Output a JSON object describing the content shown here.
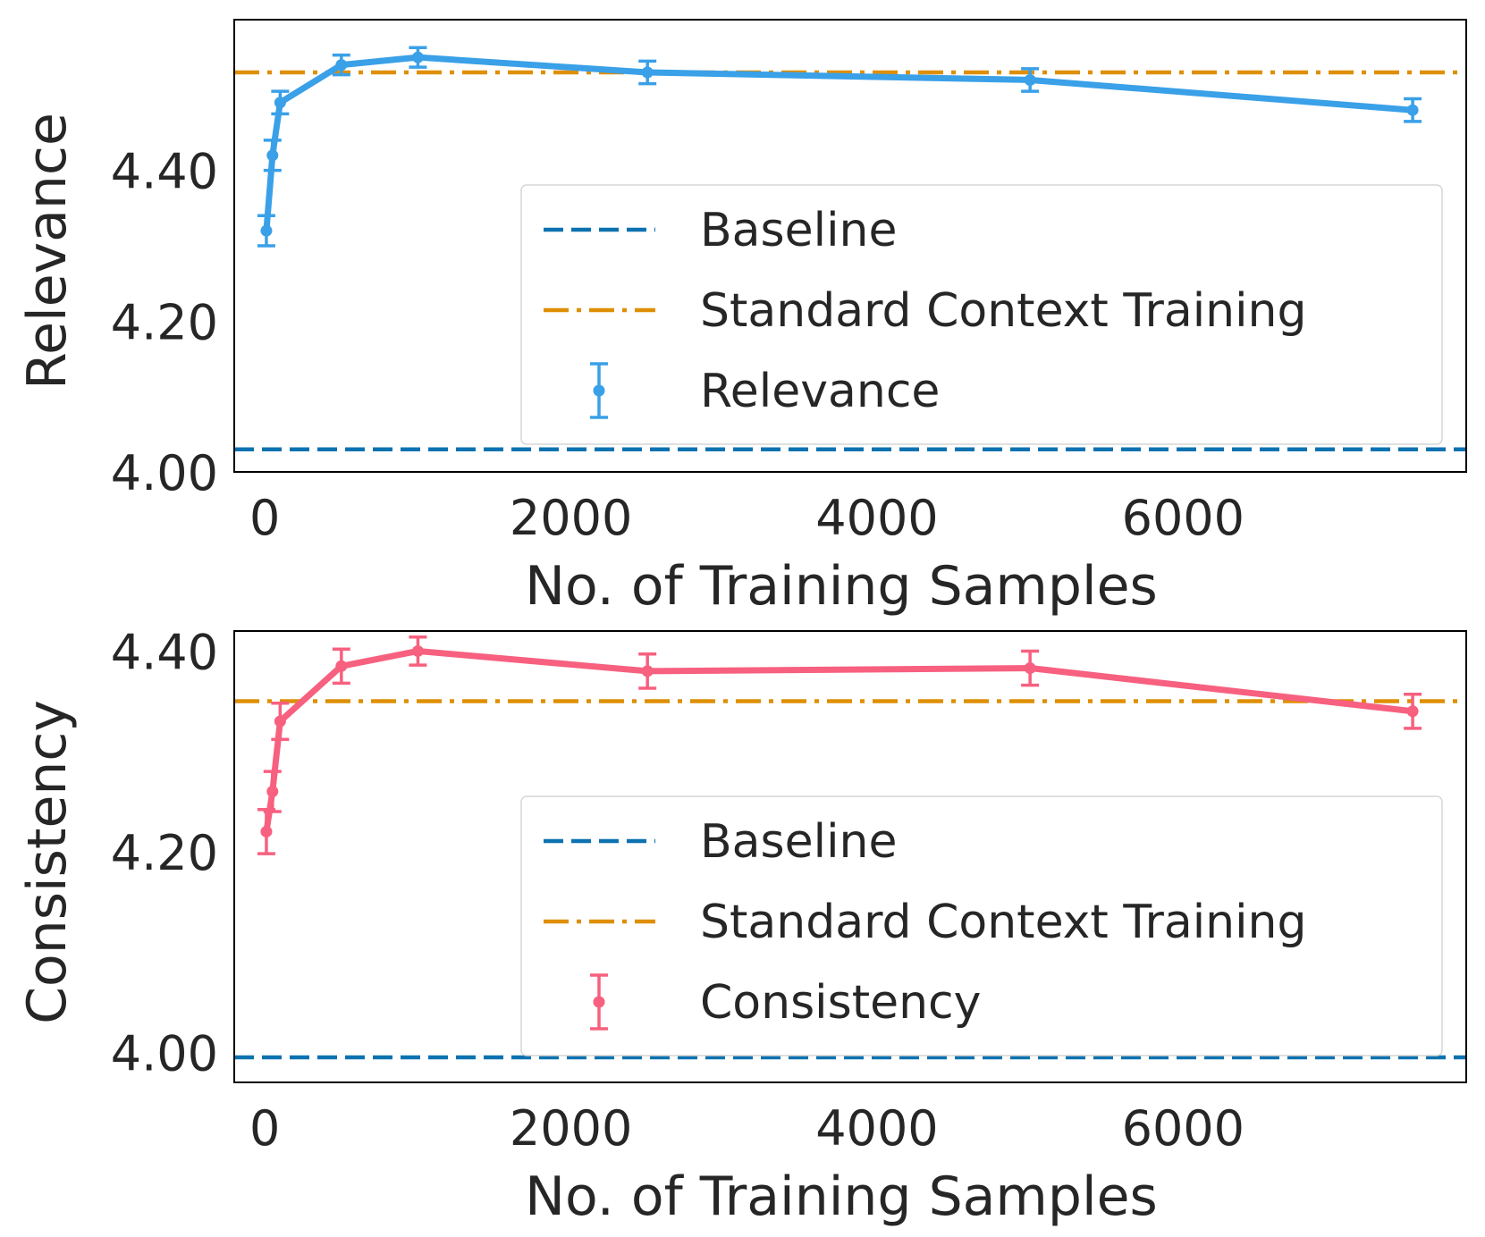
{
  "chart_data": [
    {
      "type": "line",
      "xlabel": "No. of Training Samples",
      "ylabel": "Relevance",
      "xlim": [
        -200,
        7850
      ],
      "ylim": [
        4.0,
        4.6
      ],
      "xticks": [
        0,
        2000,
        4000,
        6000
      ],
      "xtick_labels": [
        "0",
        "2000",
        "4000",
        "6000"
      ],
      "yticks": [
        4.0,
        4.2,
        4.4
      ],
      "ytick_labels": [
        "4.00",
        "4.20",
        "4.40"
      ],
      "grid": false,
      "legend_position": "lower-right",
      "series": {
        "name": "Relevance",
        "color": "#3aa0e8",
        "x": [
          10,
          50,
          100,
          500,
          1000,
          2500,
          5000,
          7500
        ],
        "y": [
          4.32,
          4.42,
          4.49,
          4.54,
          4.55,
          4.53,
          4.52,
          4.48
        ],
        "err": [
          0.02,
          0.02,
          0.015,
          0.013,
          0.013,
          0.015,
          0.015,
          0.015
        ]
      },
      "reference_lines": [
        {
          "name": "Baseline",
          "y": 4.03,
          "color": "#0d72b0",
          "style": "dashed"
        },
        {
          "name": "Standard Context Training",
          "y": 4.53,
          "color": "#de8f05",
          "style": "dashdot"
        }
      ],
      "legend": [
        "Baseline",
        "Standard Context Training",
        "Relevance"
      ]
    },
    {
      "type": "line",
      "xlabel": "No. of Training Samples",
      "ylabel": "Consistency",
      "xlim": [
        -200,
        7850
      ],
      "ylim": [
        3.97,
        4.42
      ],
      "xticks": [
        0,
        2000,
        4000,
        6000
      ],
      "xtick_labels": [
        "0",
        "2000",
        "4000",
        "6000"
      ],
      "yticks": [
        4.0,
        4.2,
        4.4
      ],
      "ytick_labels": [
        "4.00",
        "4.20",
        "4.40"
      ],
      "grid": false,
      "legend_position": "lower-right",
      "series": {
        "name": "Consistency",
        "color": "#f7607f",
        "x": [
          10,
          50,
          100,
          500,
          1000,
          2500,
          5000,
          7500
        ],
        "y": [
          4.22,
          4.26,
          4.33,
          4.385,
          4.4,
          4.38,
          4.383,
          4.34
        ],
        "err": [
          0.022,
          0.02,
          0.018,
          0.017,
          0.014,
          0.017,
          0.017,
          0.017
        ]
      },
      "reference_lines": [
        {
          "name": "Baseline",
          "y": 3.995,
          "color": "#0d72b0",
          "style": "dashed"
        },
        {
          "name": "Standard Context Training",
          "y": 4.35,
          "color": "#de8f05",
          "style": "dashdot"
        }
      ],
      "legend": [
        "Baseline",
        "Standard Context Training",
        "Consistency"
      ]
    }
  ]
}
